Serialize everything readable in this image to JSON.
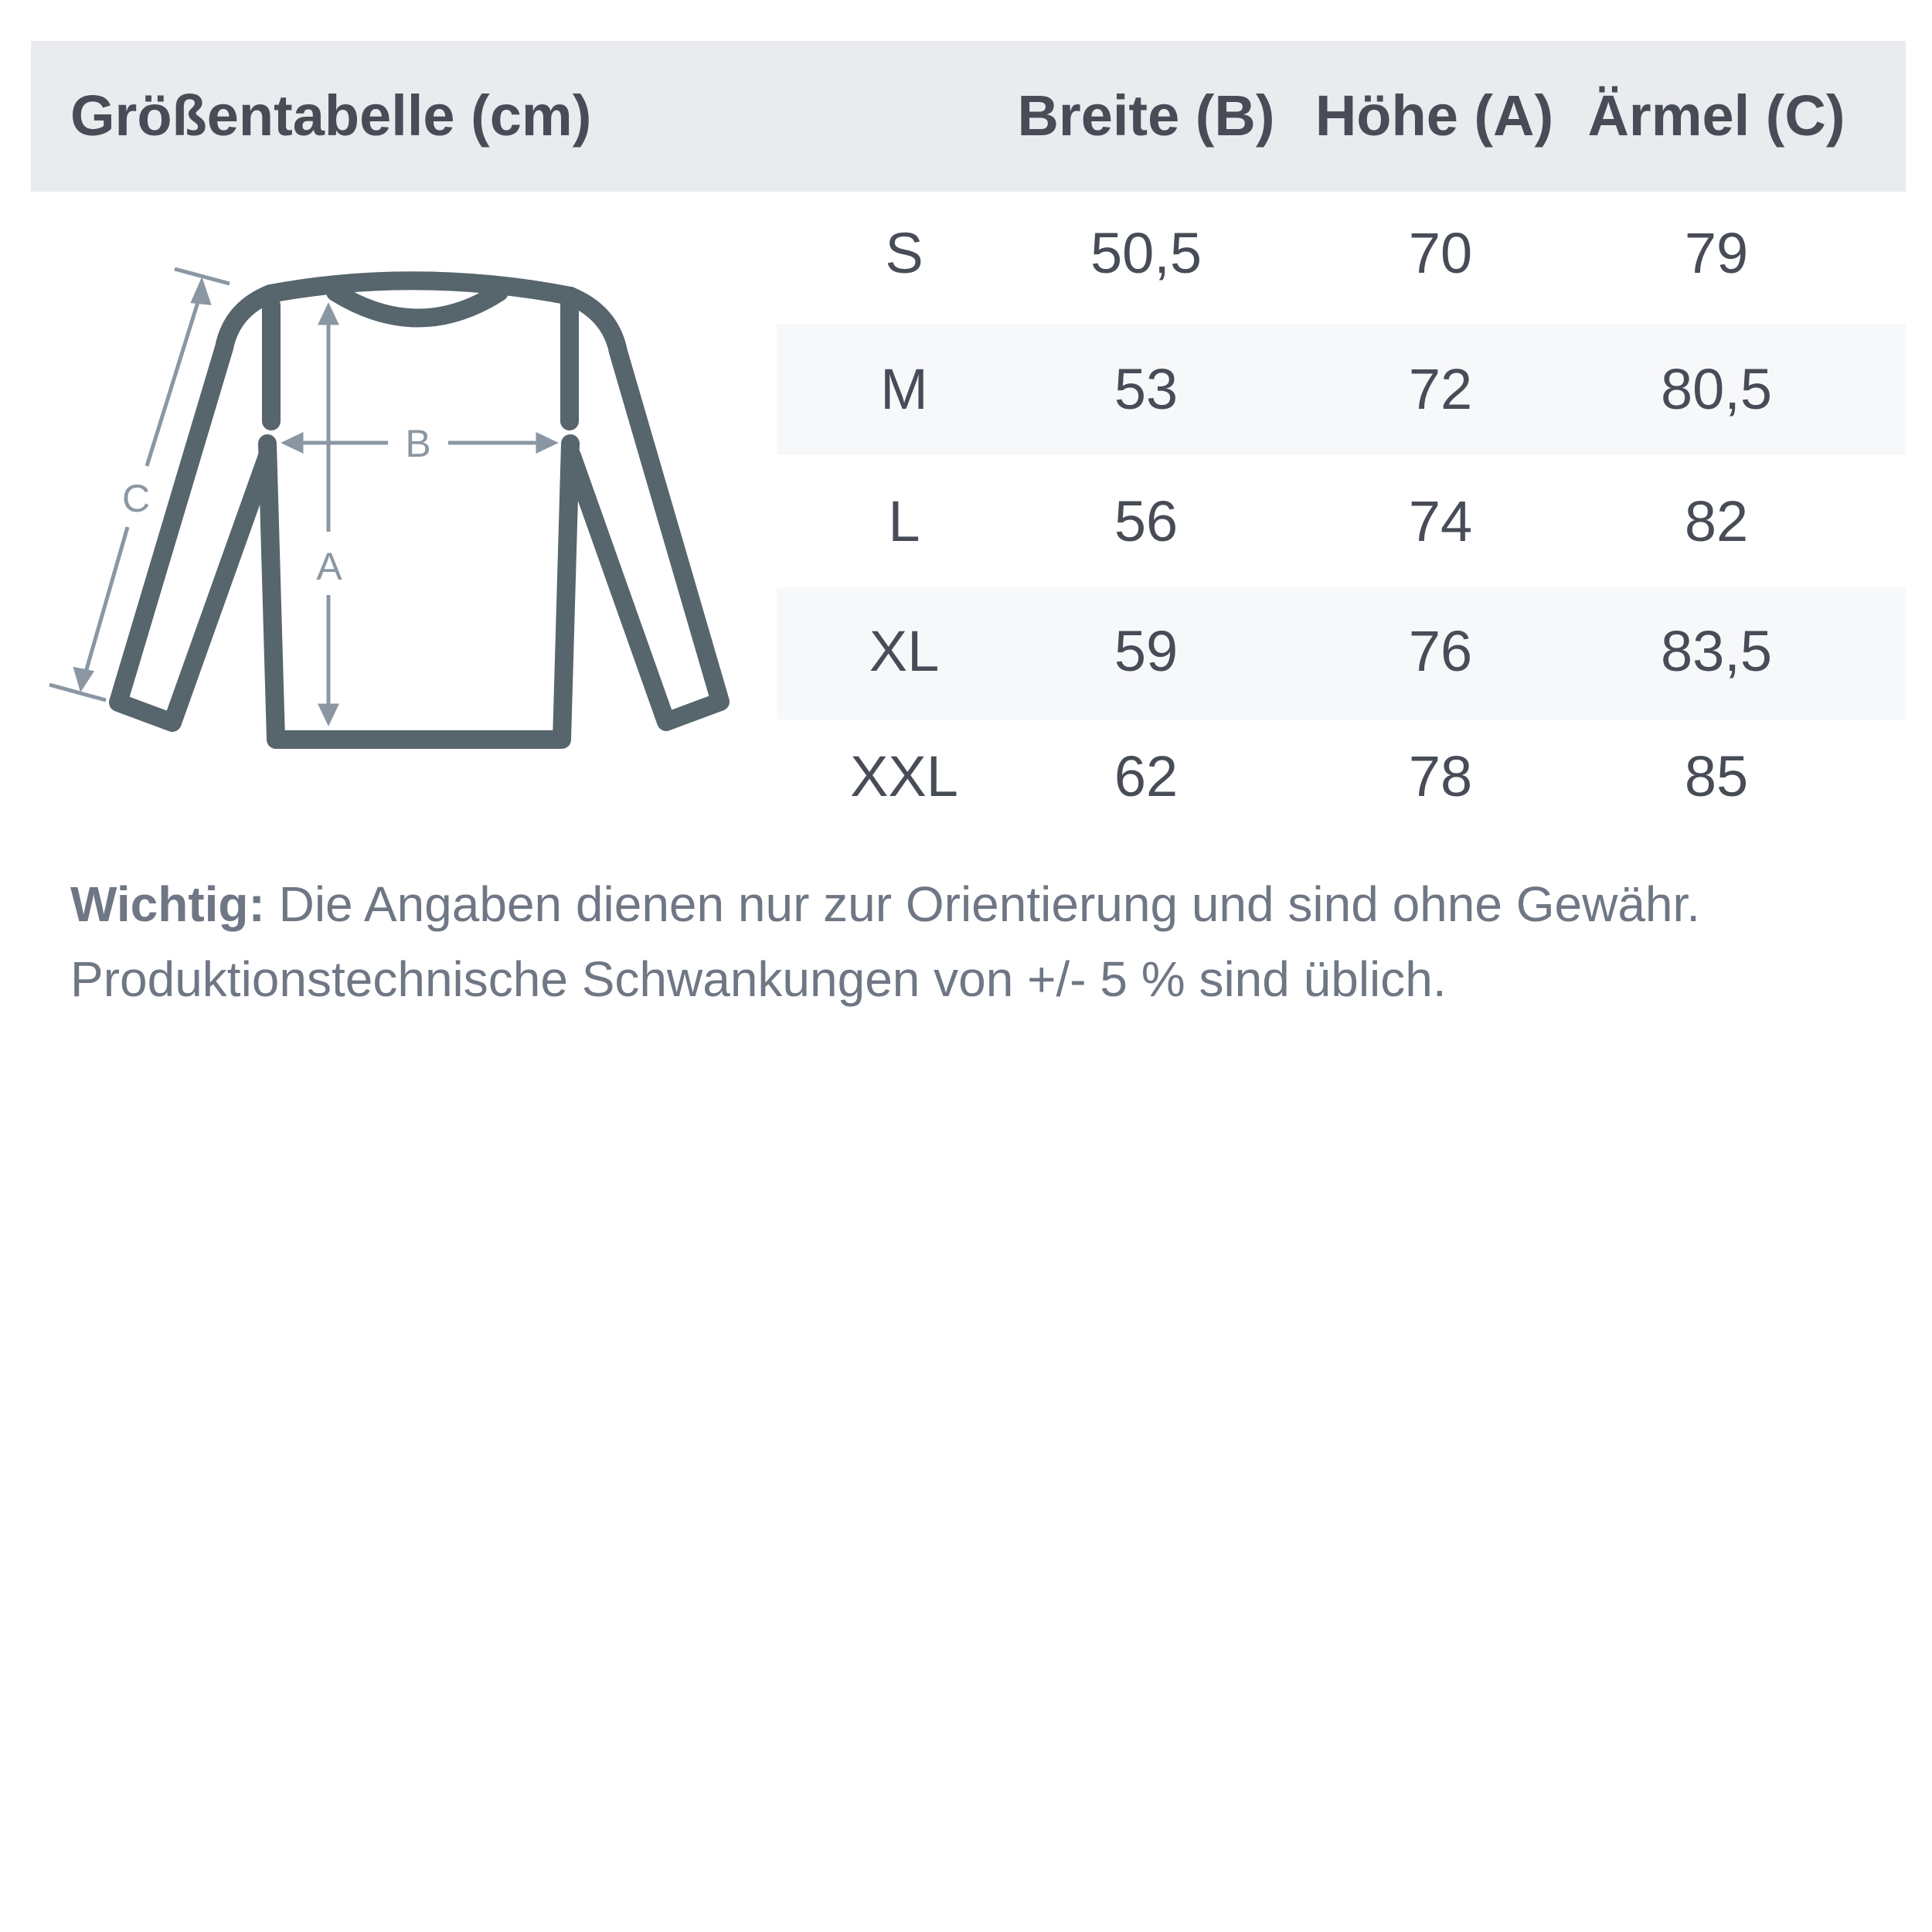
{
  "header": {
    "title": "Größentabelle (cm)",
    "columns": [
      "Breite (B)",
      "Höhe (A)",
      "Ärmel (C)"
    ]
  },
  "rows": [
    {
      "size": "S",
      "breite": "50,5",
      "hoehe": "70",
      "aermel": "79"
    },
    {
      "size": "M",
      "breite": "53",
      "hoehe": "72",
      "aermel": "80,5"
    },
    {
      "size": "L",
      "breite": "56",
      "hoehe": "74",
      "aermel": "82"
    },
    {
      "size": "XL",
      "breite": "59",
      "hoehe": "76",
      "aermel": "83,5"
    },
    {
      "size": "XXL",
      "breite": "62",
      "hoehe": "78",
      "aermel": "85"
    }
  ],
  "diagram": {
    "label_a": "A",
    "label_b": "B",
    "label_c": "C"
  },
  "note": {
    "bold": "Wichtig:",
    "line1": " Die Angaben dienen nur zur Orientierung und sind ohne Gewähr.",
    "line2": "Produktionstechnische Schwankungen von +/- 5 % sind üblich."
  },
  "colors": {
    "header_bg": "#e9ebee",
    "stripe_bg": "#f7f8fa",
    "text": "#474c57",
    "shirt": "#57656d",
    "measure": "#8a97a3"
  }
}
